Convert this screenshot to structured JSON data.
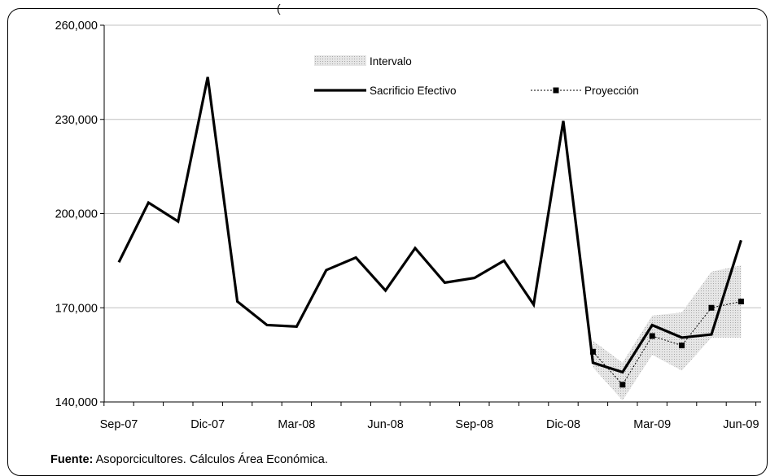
{
  "top_text": "(",
  "source": {
    "label": "Fuente:",
    "text": "Asoporcicultores. Cálculos Área Económica."
  },
  "colors": {
    "actual": "#000000",
    "projection": "#000000",
    "band": "#c8c8c8",
    "grid": "#c0c0c0"
  },
  "chart_data": {
    "type": "line",
    "title": "",
    "xlabel": "",
    "ylabel": "",
    "ylim": [
      140000,
      260000
    ],
    "yticks": [
      140000,
      170000,
      200000,
      230000,
      260000
    ],
    "ytick_labels": [
      "140,000",
      "170,000",
      "200,000",
      "230,000",
      "260,000"
    ],
    "grid": true,
    "legend_position": "top-center",
    "x_periods": [
      "Sep-07",
      "Oct-07",
      "Nov-07",
      "Dic-07",
      "Ene-08",
      "Feb-08",
      "Mar-08",
      "Abr-08",
      "May-08",
      "Jun-08",
      "Jul-08",
      "Ago-08",
      "Sep-08",
      "Oct-08",
      "Nov-08",
      "Dic-08",
      "Ene-09",
      "Feb-09",
      "Mar-09",
      "Abr-09",
      "May-09",
      "Jun-09"
    ],
    "xtick_labels": [
      "Sep-07",
      "Dic-07",
      "Mar-08",
      "Jun-08",
      "Sep-08",
      "Dic-08",
      "Mar-09",
      "Jun-09"
    ],
    "series": [
      {
        "name": "Sacrificio Efectivo",
        "style": "solid-thick",
        "values": [
          184500,
          203500,
          197500,
          243500,
          172000,
          164500,
          164000,
          182000,
          186000,
          175500,
          189000,
          178000,
          179500,
          185000,
          171000,
          229500,
          152500,
          149500,
          164500,
          160500,
          161500,
          191500
        ]
      },
      {
        "name": "Proyección",
        "style": "dotted-square",
        "start_index": 16,
        "values": [
          156000,
          145500,
          161000,
          158000,
          170000,
          172000
        ]
      }
    ],
    "interval": {
      "name": "Intervalo",
      "start_index": 16,
      "upper": [
        159500,
        152500,
        167500,
        168500,
        181500,
        183500
      ],
      "lower": [
        151000,
        140500,
        155000,
        150000,
        160500,
        160500
      ]
    }
  }
}
